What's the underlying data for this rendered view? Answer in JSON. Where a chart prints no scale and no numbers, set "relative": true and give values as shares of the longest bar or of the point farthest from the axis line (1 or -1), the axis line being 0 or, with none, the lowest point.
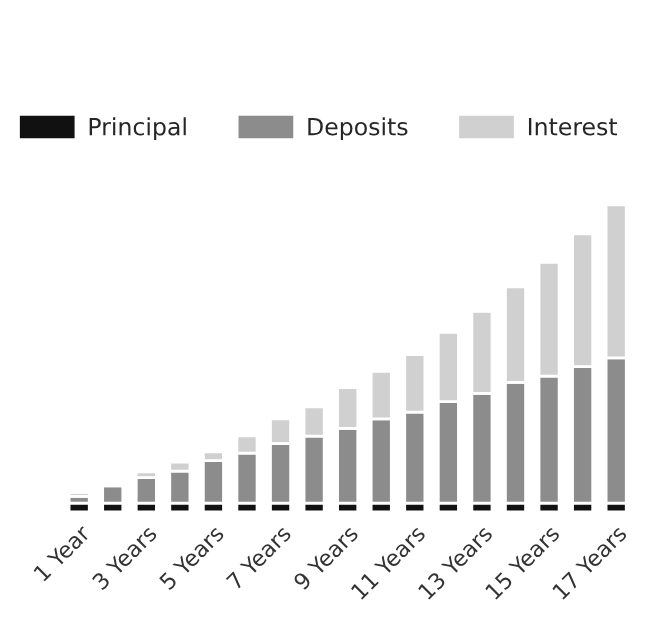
{
  "chart_data": {
    "type": "bar",
    "stacked": true,
    "relative": true,
    "legend": "top left",
    "categories": [
      "1 Year",
      null,
      "3 Years",
      null,
      "5 Years",
      null,
      "7 Years",
      null,
      "9 Years",
      null,
      "11 Years",
      null,
      "13 Years",
      null,
      "15 Years",
      null,
      "17 Years"
    ],
    "series": [
      {
        "name": "Principal",
        "color": "#111111",
        "values": [
          0.029,
          0.029,
          0.029,
          0.029,
          0.029,
          0.029,
          0.029,
          0.029,
          0.029,
          0.029,
          0.029,
          0.029,
          0.029,
          0.029,
          0.029,
          0.029,
          0.029
        ]
      },
      {
        "name": "Deposits",
        "color": "#8c8c8c",
        "values": [
          0.022,
          0.056,
          0.083,
          0.104,
          0.138,
          0.163,
          0.194,
          0.218,
          0.243,
          0.274,
          0.296,
          0.33,
          0.357,
          0.393,
          0.413,
          0.444,
          0.473
        ]
      },
      {
        "name": "Interest",
        "color": "#d0d0d0",
        "values": [
          0.012,
          0.007,
          0.019,
          0.029,
          0.029,
          0.056,
          0.08,
          0.095,
          0.133,
          0.155,
          0.187,
          0.226,
          0.267,
          0.311,
          0.371,
          0.432,
          0.498
        ]
      }
    ]
  }
}
